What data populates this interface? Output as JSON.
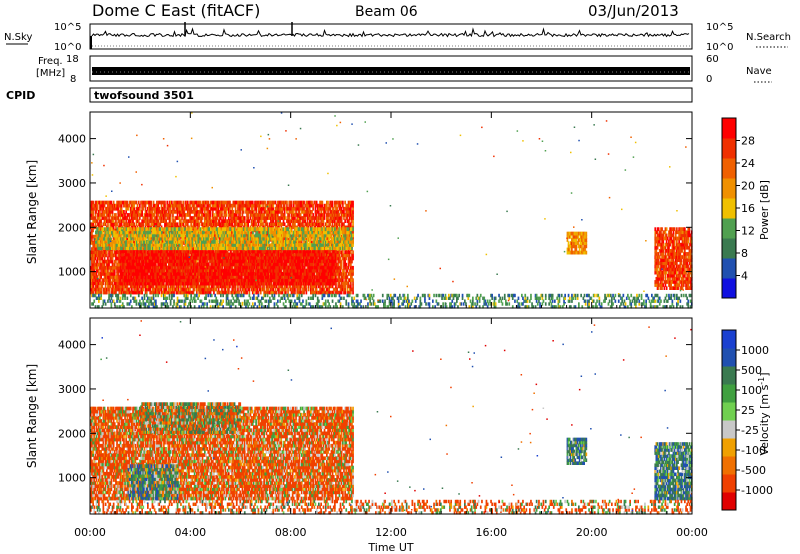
{
  "header": {
    "station": "Dome C East (fitACF)",
    "beam": "Beam 06",
    "date": "03/Jun/2013"
  },
  "strip_panels": {
    "nsky": {
      "label": "N.Sky",
      "right_label": "N.Search",
      "ticks": [
        "10^5",
        "10^0"
      ],
      "right_ticks": [
        "10^5",
        "10^0"
      ]
    },
    "freq": {
      "label_line1": "Freq.",
      "label_line2": "[MHz]",
      "right_label": "Nave",
      "ticks": [
        "18",
        "8"
      ],
      "right_ticks": [
        "60",
        "0"
      ]
    },
    "cpid": {
      "label": "CPID",
      "value": "twofsound 3501"
    }
  },
  "colors": {
    "power": [
      "#1010e0",
      "#2050b0",
      "#3a7a50",
      "#50a050",
      "#f0c000",
      "#f09000",
      "#f06000",
      "#f03000",
      "#ff0000"
    ],
    "velocity": [
      "#e00000",
      "#f04000",
      "#f07000",
      "#f0a000",
      "#c8c8c8",
      "#70d050",
      "#40a040",
      "#3a7a50",
      "#2050b0",
      "#1a40d0"
    ]
  },
  "chart_data": [
    {
      "type": "heatmap",
      "name": "power",
      "xlabel": "",
      "ylabel": "Slant Range [km]",
      "x_ticks": [
        "00:00",
        "04:00",
        "08:00",
        "12:00",
        "16:00",
        "20:00",
        "00:00"
      ],
      "y_ticks": [
        "1000",
        "2000",
        "3000",
        "4000"
      ],
      "x_range_hours": [
        0,
        24
      ],
      "y_range_km": [
        180,
        4600
      ],
      "colorbar": {
        "label": "Power [dB]",
        "ticks": [
          "28",
          "24",
          "20",
          "16",
          "12",
          "8",
          "4"
        ],
        "range": [
          0,
          32
        ]
      },
      "regions": [
        {
          "t0": 0.0,
          "t1": 10.5,
          "r0": 500,
          "r1": 2600,
          "value": 26
        },
        {
          "t0": 1.2,
          "t1": 9.8,
          "r0": 700,
          "r1": 1500,
          "value": 30
        },
        {
          "t0": 0.2,
          "t1": 10.5,
          "r0": 1500,
          "r1": 2000,
          "value": 16
        },
        {
          "t0": 19.0,
          "t1": 19.8,
          "r0": 1400,
          "r1": 1900,
          "value": 20
        },
        {
          "t0": 22.5,
          "t1": 24.0,
          "r0": 600,
          "r1": 2000,
          "value": 26
        },
        {
          "t0": 0.0,
          "t1": 24.0,
          "r0": 180,
          "r1": 500,
          "value": 10
        }
      ]
    },
    {
      "type": "heatmap",
      "name": "velocity",
      "xlabel": "Time UT",
      "ylabel": "Slant Range [km]",
      "x_ticks": [
        "00:00",
        "04:00",
        "08:00",
        "12:00",
        "16:00",
        "20:00",
        "00:00"
      ],
      "y_ticks": [
        "1000",
        "2000",
        "3000",
        "4000"
      ],
      "x_range_hours": [
        0,
        24
      ],
      "y_range_km": [
        180,
        4600
      ],
      "colorbar": {
        "label": "Velocity [m s^-1]",
        "ticks": [
          "1000",
          "500",
          "100",
          "25",
          "-25",
          "-100",
          "-500",
          "-1000"
        ],
        "range": [
          -1000,
          1000
        ]
      },
      "regions": [
        {
          "t0": 0.0,
          "t1": 10.5,
          "r0": 500,
          "r1": 2600,
          "value": -150
        },
        {
          "t0": 1.5,
          "t1": 3.5,
          "r0": 500,
          "r1": 1300,
          "value": 150
        },
        {
          "t0": 2.0,
          "t1": 6.0,
          "r0": 2000,
          "r1": 2700,
          "value": 0
        },
        {
          "t0": 19.0,
          "t1": 19.8,
          "r0": 1300,
          "r1": 1900,
          "value": 200
        },
        {
          "t0": 22.5,
          "t1": 24.0,
          "r0": 500,
          "r1": 1800,
          "value": 200
        },
        {
          "t0": 0.0,
          "t1": 24.0,
          "r0": 180,
          "r1": 500,
          "value": -100
        }
      ]
    }
  ]
}
